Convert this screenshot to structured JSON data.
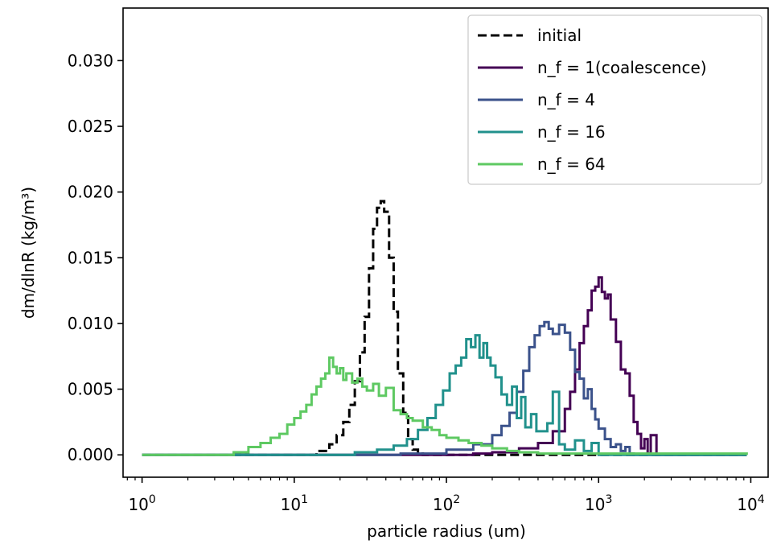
{
  "chart_data": {
    "type": "line",
    "xscale": "log",
    "xlabel": "particle radius (um)",
    "ylabel": "dm/dlnR (kg/m³)",
    "xlim": [
      0.75,
      13000
    ],
    "ylim": [
      -0.0017,
      0.034
    ],
    "legend_position": "top-right",
    "grid": false,
    "xticks": [
      {
        "value": 1,
        "base": "10",
        "exp": "0"
      },
      {
        "value": 10,
        "base": "10",
        "exp": "1"
      },
      {
        "value": 100,
        "base": "10",
        "exp": "2"
      },
      {
        "value": 1000,
        "base": "10",
        "exp": "3"
      },
      {
        "value": 10000,
        "base": "10",
        "exp": "4"
      }
    ],
    "yticks": [
      {
        "value": 0.0,
        "label": "0.000"
      },
      {
        "value": 0.005,
        "label": "0.005"
      },
      {
        "value": 0.01,
        "label": "0.010"
      },
      {
        "value": 0.015,
        "label": "0.015"
      },
      {
        "value": 0.02,
        "label": "0.020"
      },
      {
        "value": 0.025,
        "label": "0.025"
      },
      {
        "value": 0.03,
        "label": "0.030"
      }
    ],
    "series": [
      {
        "name": "initial",
        "color": "#000000",
        "dashed": true,
        "x": [
          1,
          10,
          14,
          17,
          19,
          21,
          23,
          25,
          27,
          29,
          31,
          33,
          35,
          37,
          39,
          42,
          45,
          48,
          52,
          56,
          60,
          65,
          70,
          100,
          1000,
          9400
        ],
        "y": [
          0,
          0,
          0.0003,
          0.0008,
          0.0015,
          0.0025,
          0.0038,
          0.0056,
          0.0078,
          0.0105,
          0.0142,
          0.0172,
          0.0188,
          0.0193,
          0.0185,
          0.015,
          0.0109,
          0.0062,
          0.0032,
          0.0012,
          0.0004,
          0.0001,
          0,
          0,
          0,
          0
        ]
      },
      {
        "name": "n_f = 1(coalescence)",
        "color": "#440154",
        "dashed": false,
        "x": [
          1,
          100,
          150,
          200,
          300,
          400,
          500,
          600,
          650,
          700,
          750,
          800,
          850,
          900,
          950,
          1000,
          1050,
          1100,
          1150,
          1200,
          1300,
          1400,
          1500,
          1600,
          1700,
          1800,
          1900,
          2000,
          2100,
          2200,
          2400,
          9400
        ],
        "y": [
          0,
          0,
          0.0001,
          0.0002,
          0.0005,
          0.0009,
          0.0018,
          0.0035,
          0.0048,
          0.0065,
          0.0085,
          0.0098,
          0.011,
          0.0125,
          0.0128,
          0.0135,
          0.0124,
          0.0119,
          0.0122,
          0.0103,
          0.0086,
          0.0065,
          0.0062,
          0.0045,
          0.0025,
          0.0016,
          0.0005,
          0.0012,
          0.0001,
          0.0015,
          0,
          0
        ]
      },
      {
        "name": "n_f = 4",
        "color": "#3b528b",
        "dashed": false,
        "x": [
          1,
          20,
          50,
          100,
          150,
          200,
          230,
          260,
          290,
          320,
          350,
          380,
          410,
          440,
          470,
          500,
          550,
          600,
          650,
          700,
          750,
          800,
          850,
          900,
          950,
          1000,
          1100,
          1200,
          1300,
          1400,
          1500,
          1600,
          1700,
          9400
        ],
        "y": [
          0,
          0,
          0.0001,
          0.0004,
          0.0008,
          0.0015,
          0.0022,
          0.0032,
          0.0048,
          0.0064,
          0.0082,
          0.0091,
          0.0098,
          0.0101,
          0.0096,
          0.0092,
          0.0099,
          0.0093,
          0.008,
          0.0063,
          0.0058,
          0.0043,
          0.005,
          0.0035,
          0.0027,
          0.002,
          0.0012,
          0.0006,
          0.0008,
          0.0003,
          0.0006,
          0.0001,
          0,
          0
        ]
      },
      {
        "name": "n_f = 16",
        "color": "#21918c",
        "dashed": false,
        "x": [
          1,
          15,
          25,
          35,
          45,
          55,
          65,
          75,
          85,
          95,
          105,
          115,
          125,
          135,
          145,
          155,
          165,
          175,
          185,
          195,
          210,
          230,
          250,
          270,
          290,
          310,
          330,
          360,
          390,
          420,
          460,
          500,
          550,
          600,
          700,
          800,
          900,
          1000,
          9400
        ],
        "y": [
          0,
          0,
          0.0002,
          0.0004,
          0.0007,
          0.0012,
          0.0019,
          0.0028,
          0.0038,
          0.0049,
          0.0062,
          0.0068,
          0.0074,
          0.0088,
          0.0082,
          0.0091,
          0.0074,
          0.0085,
          0.0074,
          0.0068,
          0.0059,
          0.0046,
          0.0038,
          0.0052,
          0.0028,
          0.0044,
          0.0021,
          0.0031,
          0.0018,
          0.0018,
          0.0024,
          0.0048,
          0.0008,
          0.0004,
          0.0011,
          0.0003,
          0.0009,
          0,
          0
        ]
      },
      {
        "name": "n_f = 64",
        "color": "#5ec962",
        "dashed": false,
        "x": [
          1,
          3,
          4,
          5,
          6,
          7,
          8,
          9,
          10,
          11,
          12,
          13,
          14,
          15,
          16,
          17,
          18,
          19,
          20,
          21,
          22,
          24,
          26,
          28,
          30,
          33,
          36,
          40,
          45,
          50,
          55,
          60,
          70,
          80,
          90,
          100,
          120,
          140,
          170,
          200,
          250,
          300,
          400,
          9400
        ],
        "y": [
          0,
          0,
          0.0002,
          0.0006,
          0.0009,
          0.0013,
          0.0016,
          0.0023,
          0.0028,
          0.0033,
          0.0038,
          0.0046,
          0.0052,
          0.0058,
          0.0062,
          0.0074,
          0.0067,
          0.0062,
          0.0066,
          0.0057,
          0.0062,
          0.0055,
          0.0058,
          0.0052,
          0.0049,
          0.0054,
          0.0045,
          0.0051,
          0.0034,
          0.0031,
          0.0028,
          0.0026,
          0.0021,
          0.0019,
          0.0015,
          0.0013,
          0.0011,
          0.0009,
          0.0007,
          0.0005,
          0.0003,
          0.0002,
          0.0001,
          0
        ]
      }
    ]
  }
}
